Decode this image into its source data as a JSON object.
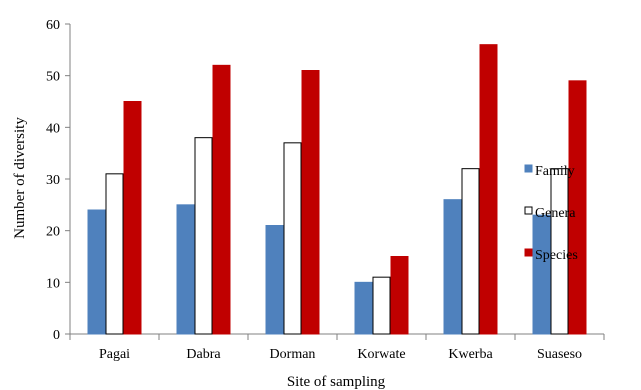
{
  "chart_data": {
    "type": "bar",
    "title": "",
    "xlabel": "Site of sampling",
    "ylabel": "Number of diversity",
    "ylim": [
      0,
      60
    ],
    "yticks": [
      0,
      10,
      20,
      30,
      40,
      50,
      60
    ],
    "grid": false,
    "legend_position": "right",
    "categories": [
      "Pagai",
      "Dabra",
      "Dorman",
      "Korwate",
      "Kwerba",
      "Suaseso"
    ],
    "series": [
      {
        "name": "Family",
        "color": "#4f81bd",
        "stroke": "#4f81bd",
        "values": [
          24,
          25,
          21,
          10,
          26,
          23
        ]
      },
      {
        "name": "Genera",
        "color": "#ffffff",
        "stroke": "#000000",
        "values": [
          31,
          38,
          37,
          11,
          32,
          32
        ]
      },
      {
        "name": "Species",
        "color": "#c00000",
        "stroke": "#c00000",
        "values": [
          45,
          52,
          51,
          15,
          56,
          49
        ]
      }
    ]
  }
}
